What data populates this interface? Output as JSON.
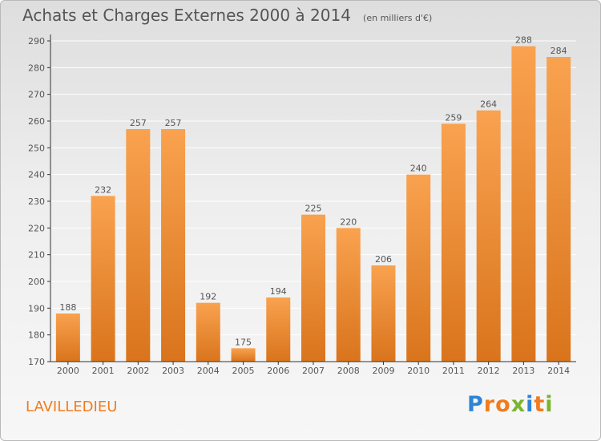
{
  "header": {
    "title": "Achats et Charges Externes 2000 à 2014",
    "subtitle": "(en milliers d'€)"
  },
  "footer": {
    "commune": "LAVILLEDIEU",
    "brand": "Proxiti"
  },
  "colors": {
    "bar_light": "#f9a24f",
    "bar_dark": "#d9741c",
    "commune_text": "#f07c1e",
    "grid": "#ffffff",
    "axis": "#333333",
    "text": "#555555",
    "brand_letters": [
      "#2e84d6",
      "#f07c1e",
      "#f07c1e",
      "#79b52e",
      "#2e84d6",
      "#f07c1e",
      "#79b52e"
    ]
  },
  "chart_data": {
    "type": "bar",
    "title": "Achats et Charges Externes 2000 à 2014",
    "subtitle": "(en milliers d'€)",
    "categories": [
      "2000",
      "2001",
      "2002",
      "2003",
      "2004",
      "2005",
      "2006",
      "2007",
      "2008",
      "2009",
      "2010",
      "2011",
      "2012",
      "2013",
      "2014"
    ],
    "values": [
      188,
      232,
      257,
      257,
      192,
      175,
      194,
      225,
      220,
      206,
      240,
      259,
      264,
      288,
      284
    ],
    "xlabel": "",
    "ylabel": "",
    "ylim": [
      170,
      290
    ],
    "yticks": [
      170,
      180,
      190,
      200,
      210,
      220,
      230,
      240,
      250,
      260,
      270,
      280,
      290
    ],
    "grid": true,
    "legend": "none"
  }
}
